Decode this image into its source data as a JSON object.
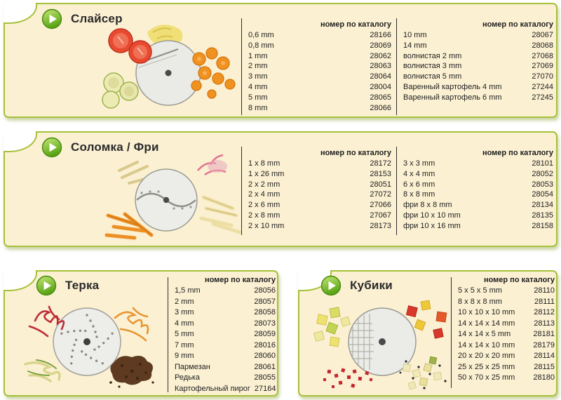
{
  "colors": {
    "panel_bg": "#FBF0D2",
    "panel_border": "#A6C13B",
    "play_green": "#58A412",
    "divider": "#2E2E2E",
    "text": "#1E1E1E"
  },
  "catalog_header": "номер по каталогу",
  "panels": [
    {
      "id": "slicer",
      "title": "Слайсер",
      "illustration": "slicer-disc-with-tomato-cucumber-carrot-slices",
      "columns": [
        {
          "header": "номер по каталогу",
          "rows": [
            {
              "label": "0,6 mm",
              "code": "28166"
            },
            {
              "label": "0,8 mm",
              "code": "28069"
            },
            {
              "label": "1 mm",
              "code": "28062"
            },
            {
              "label": "2 mm",
              "code": "28063"
            },
            {
              "label": "3 mm",
              "code": "28064"
            },
            {
              "label": "4 mm",
              "code": "28004"
            },
            {
              "label": "5 mm",
              "code": "28065"
            },
            {
              "label": "8 mm",
              "code": "28066"
            }
          ]
        },
        {
          "header": "номер по каталогу",
          "rows": [
            {
              "label": "10 mm",
              "code": "28067"
            },
            {
              "label": "14 mm",
              "code": "28068"
            },
            {
              "label": "волнистая 2 mm",
              "code": "27068"
            },
            {
              "label": "волнистая 3 mm",
              "code": "27069"
            },
            {
              "label": "волнистая 5 mm",
              "code": "27070"
            },
            {
              "label": "Варенный картофель 4 mm",
              "code": "27244"
            },
            {
              "label": "Варенный картофель 6 mm",
              "code": "27245"
            }
          ]
        }
      ]
    },
    {
      "id": "julienne",
      "title": "Соломка / Фри",
      "illustration": "julienne-disc-with-fries-sticks",
      "columns": [
        {
          "header": "номер по каталогу",
          "rows": [
            {
              "label": "1 x 8 mm",
              "code": "28172"
            },
            {
              "label": "1 x 26 mm",
              "code": "28153"
            },
            {
              "label": "2 x 2 mm",
              "code": "28051"
            },
            {
              "label": "2 x 4 mm",
              "code": "27072"
            },
            {
              "label": "2 x 6 mm",
              "code": "27066"
            },
            {
              "label": "2 x 8 mm",
              "code": "27067"
            },
            {
              "label": "2 x 10 mm",
              "code": "28173"
            }
          ]
        },
        {
          "header": "номер по каталогу",
          "rows": [
            {
              "label": "3 x 3 mm",
              "code": "28101"
            },
            {
              "label": "4 x 4 mm",
              "code": "28052"
            },
            {
              "label": "6 x 6 mm",
              "code": "28053"
            },
            {
              "label": "8 x 8 mm",
              "code": "28054"
            },
            {
              "label": "фри 8 x 8 mm",
              "code": "28134"
            },
            {
              "label": "фри 10 x 10 mm",
              "code": "28135"
            },
            {
              "label": "фри 10 x 16 mm",
              "code": "28158"
            }
          ]
        }
      ]
    },
    {
      "id": "grater",
      "title": "Терка",
      "illustration": "grater-disc-with-shredded-vegetables",
      "columns": [
        {
          "header": "номер по каталогу",
          "rows": [
            {
              "label": "1,5 mm",
              "code": "28056"
            },
            {
              "label": "2 mm",
              "code": "28057"
            },
            {
              "label": "3 mm",
              "code": "28058"
            },
            {
              "label": "4 mm",
              "code": "28073"
            },
            {
              "label": "5 mm",
              "code": "28059"
            },
            {
              "label": "7 mm",
              "code": "28016"
            },
            {
              "label": "9 mm",
              "code": "28060"
            },
            {
              "label": "Пармезан",
              "code": "28061"
            },
            {
              "label": "Редька",
              "code": "28055"
            },
            {
              "label": "Картофельный пирог",
              "code": "27164"
            }
          ]
        }
      ]
    },
    {
      "id": "cubes",
      "title": "Кубики",
      "illustration": "dicing-grid-disc-with-vegetable-cubes",
      "columns": [
        {
          "header": "номер по каталогу",
          "rows": [
            {
              "label": "5 x 5 x 5 mm",
              "code": "28110"
            },
            {
              "label": "8 x 8 x 8 mm",
              "code": "28111"
            },
            {
              "label": "10 x 10 x 10 mm",
              "code": "28112"
            },
            {
              "label": "14 x 14 x 14 mm",
              "code": "28113"
            },
            {
              "label": "14 x 14 x 5 mm",
              "code": "28181"
            },
            {
              "label": "14 x 14 x 10 mm",
              "code": "28179"
            },
            {
              "label": "20 x 20 x 20 mm",
              "code": "28114"
            },
            {
              "label": "25 x 25 x 25 mm",
              "code": "28115"
            },
            {
              "label": "50 x 70 x 25 mm",
              "code": "28180"
            }
          ]
        }
      ]
    }
  ]
}
